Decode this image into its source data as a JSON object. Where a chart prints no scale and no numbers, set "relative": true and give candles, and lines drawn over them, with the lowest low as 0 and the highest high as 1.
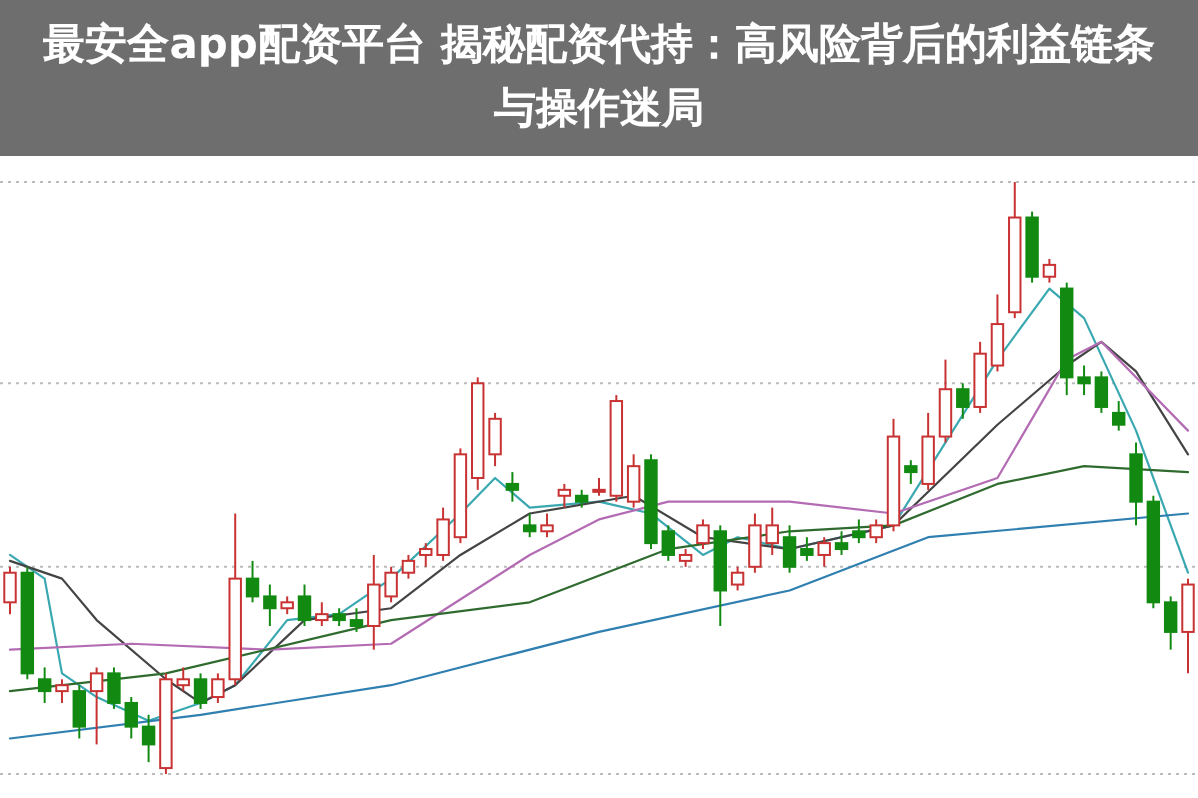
{
  "chart_data": {
    "type": "candlestick",
    "title": "最安全app配资平台 揭秘配资代持：高风险背后的利益链条与操作迷局",
    "relative": true,
    "ref_lines": [
      {
        "axis": "y",
        "value": 1,
        "color": "#bbbbbb",
        "line_style": "dotted"
      },
      {
        "axis": "y",
        "value": 0.66,
        "color": "#bbbbbb",
        "line_style": "dotted"
      },
      {
        "axis": "y",
        "value": 0.35,
        "color": "#bbbbbb",
        "line_style": "dotted"
      },
      {
        "axis": "y",
        "value": 0,
        "color": "#bbbbbb",
        "line_style": "dotted"
      }
    ],
    "categories": [
      null,
      null,
      null,
      null,
      null,
      null,
      null,
      null,
      null,
      null,
      null,
      null,
      null,
      null,
      null,
      null,
      null,
      null,
      null,
      null,
      null,
      null,
      null,
      null,
      null,
      null,
      null,
      null,
      null,
      null,
      null,
      null,
      null,
      null,
      null,
      null,
      null,
      null,
      null,
      null,
      null,
      null,
      null,
      null,
      null,
      null,
      null,
      null,
      null,
      null,
      null,
      null,
      null,
      null,
      null,
      null,
      null,
      null,
      null,
      null,
      null,
      null,
      null,
      null,
      null,
      null,
      null,
      null,
      null
    ],
    "ohlc": [
      [
        0.29,
        0.35,
        0.27,
        0.34
      ],
      [
        0.34,
        0.35,
        0.16,
        0.17
      ],
      [
        0.16,
        0.18,
        0.12,
        0.14
      ],
      [
        0.14,
        0.16,
        0.12,
        0.15
      ],
      [
        0.14,
        0.15,
        0.06,
        0.08
      ],
      [
        0.14,
        0.18,
        0.05,
        0.17
      ],
      [
        0.17,
        0.18,
        0.11,
        0.12
      ],
      [
        0.12,
        0.13,
        0.06,
        0.08
      ],
      [
        0.08,
        0.1,
        0.02,
        0.05
      ],
      [
        0.01,
        0.17,
        0,
        0.16
      ],
      [
        0.15,
        0.18,
        0.14,
        0.16
      ],
      [
        0.16,
        0.17,
        0.11,
        0.12
      ],
      [
        0.13,
        0.17,
        0.12,
        0.16
      ],
      [
        0.16,
        0.44,
        0.15,
        0.33
      ],
      [
        0.33,
        0.36,
        0.29,
        0.3
      ],
      [
        0.3,
        0.32,
        0.25,
        0.28
      ],
      [
        0.28,
        0.3,
        0.27,
        0.29
      ],
      [
        0.3,
        0.32,
        0.25,
        0.26
      ],
      [
        0.26,
        0.29,
        0.25,
        0.27
      ],
      [
        0.27,
        0.28,
        0.25,
        0.26
      ],
      [
        0.26,
        0.28,
        0.24,
        0.25
      ],
      [
        0.25,
        0.37,
        0.21,
        0.32
      ],
      [
        0.3,
        0.35,
        0.29,
        0.34
      ],
      [
        0.34,
        0.37,
        0.33,
        0.36
      ],
      [
        0.37,
        0.39,
        0.35,
        0.38
      ],
      [
        0.37,
        0.45,
        0.36,
        0.43
      ],
      [
        0.4,
        0.55,
        0.39,
        0.54
      ],
      [
        0.5,
        0.67,
        0.48,
        0.66
      ],
      [
        0.54,
        0.61,
        0.52,
        0.6
      ],
      [
        0.49,
        0.51,
        0.46,
        0.48
      ],
      [
        0.42,
        0.44,
        0.4,
        0.41
      ],
      [
        0.41,
        0.44,
        0.4,
        0.42
      ],
      [
        0.47,
        0.49,
        0.45,
        0.48
      ],
      [
        0.47,
        0.48,
        0.45,
        0.46
      ],
      [
        0.48,
        0.5,
        0.47,
        0.48
      ],
      [
        0.47,
        0.64,
        0.46,
        0.63
      ],
      [
        0.46,
        0.54,
        0.45,
        0.52
      ],
      [
        0.53,
        0.54,
        0.38,
        0.39
      ],
      [
        0.41,
        0.42,
        0.36,
        0.37
      ],
      [
        0.36,
        0.38,
        0.35,
        0.37
      ],
      [
        0.39,
        0.43,
        0.38,
        0.42
      ],
      [
        0.41,
        0.42,
        0.25,
        0.31
      ],
      [
        0.32,
        0.35,
        0.31,
        0.34
      ],
      [
        0.35,
        0.44,
        0.34,
        0.42
      ],
      [
        0.39,
        0.45,
        0.37,
        0.42
      ],
      [
        0.4,
        0.42,
        0.34,
        0.35
      ],
      [
        0.38,
        0.4,
        0.36,
        0.37
      ],
      [
        0.37,
        0.4,
        0.35,
        0.39
      ],
      [
        0.39,
        0.41,
        0.37,
        0.38
      ],
      [
        0.41,
        0.43,
        0.39,
        0.4
      ],
      [
        0.4,
        0.43,
        0.39,
        0.42
      ],
      [
        0.42,
        0.6,
        0.41,
        0.57
      ],
      [
        0.52,
        0.53,
        0.49,
        0.51
      ],
      [
        0.49,
        0.61,
        0.48,
        0.57
      ],
      [
        0.57,
        0.7,
        0.56,
        0.65
      ],
      [
        0.65,
        0.66,
        0.6,
        0.62
      ],
      [
        0.62,
        0.73,
        0.61,
        0.71
      ],
      [
        0.69,
        0.81,
        0.68,
        0.76
      ],
      [
        0.78,
        1,
        0.77,
        0.94
      ],
      [
        0.94,
        0.95,
        0.83,
        0.84
      ],
      [
        0.84,
        0.87,
        0.83,
        0.86
      ],
      [
        0.82,
        0.83,
        0.64,
        0.67
      ],
      [
        0.67,
        0.69,
        0.64,
        0.66
      ],
      [
        0.67,
        0.68,
        0.61,
        0.62
      ],
      [
        0.61,
        0.63,
        0.58,
        0.59
      ],
      [
        0.54,
        0.56,
        0.42,
        0.46
      ],
      [
        0.46,
        0.47,
        0.28,
        0.29
      ],
      [
        0.29,
        0.3,
        0.21,
        0.24
      ],
      [
        0.24,
        0.33,
        0.17,
        0.32
      ]
    ],
    "series": [
      {
        "type": "line",
        "color": "#3aa8b0",
        "values": [
          0.37,
          null,
          0.33,
          0.17,
          null,
          0.13,
          null,
          null,
          0.09,
          null,
          null,
          0.12,
          null,
          0.15,
          null,
          null,
          0.26,
          null,
          null,
          0.27,
          null,
          null,
          0.33,
          null,
          null,
          null,
          0.44,
          null,
          0.5,
          null,
          0.45,
          null,
          null,
          null,
          0.46,
          null,
          null,
          0.44,
          null,
          null,
          0.37,
          null,
          0.4,
          null,
          null,
          0.38,
          null,
          null,
          null,
          null,
          null,
          0.42,
          null,
          null,
          null,
          null,
          null,
          0.7,
          null,
          null,
          0.82,
          null,
          0.77,
          null,
          null,
          0.58,
          null,
          null,
          0.34
        ]
      },
      {
        "type": "line",
        "color": "#444444",
        "values": [
          0.36,
          null,
          null,
          0.33,
          null,
          0.26,
          null,
          null,
          null,
          0.16,
          null,
          0.12,
          null,
          0.15,
          null,
          null,
          null,
          0.26,
          null,
          null,
          null,
          null,
          0.28,
          null,
          null,
          null,
          0.37,
          null,
          null,
          null,
          0.44,
          null,
          null,
          null,
          null,
          null,
          0.47,
          null,
          null,
          null,
          0.4,
          null,
          null,
          null,
          null,
          0.38,
          null,
          null,
          null,
          null,
          null,
          0.42,
          null,
          null,
          null,
          null,
          null,
          0.59,
          null,
          null,
          null,
          0.69,
          null,
          0.73,
          null,
          0.68,
          null,
          null,
          0.54
        ]
      },
      {
        "type": "line",
        "color": "#b36bb3",
        "values": [
          0.21,
          null,
          null,
          null,
          null,
          null,
          null,
          0.22,
          null,
          null,
          null,
          null,
          null,
          null,
          null,
          0.21,
          null,
          null,
          null,
          null,
          null,
          null,
          0.22,
          null,
          null,
          null,
          null,
          null,
          null,
          null,
          0.37,
          null,
          null,
          null,
          0.43,
          null,
          null,
          null,
          0.46,
          null,
          null,
          null,
          null,
          null,
          null,
          0.46,
          null,
          null,
          null,
          null,
          null,
          0.44,
          null,
          null,
          null,
          null,
          null,
          0.5,
          null,
          null,
          null,
          0.7,
          null,
          0.73,
          null,
          null,
          null,
          null,
          0.58
        ]
      },
      {
        "type": "line",
        "color": "#2f6b2f",
        "values": [
          0.14,
          null,
          null,
          null,
          null,
          null,
          null,
          null,
          null,
          0.17,
          null,
          null,
          null,
          null,
          null,
          null,
          null,
          null,
          null,
          null,
          null,
          null,
          0.26,
          null,
          null,
          null,
          null,
          null,
          null,
          null,
          0.29,
          null,
          null,
          null,
          null,
          null,
          null,
          null,
          0.38,
          null,
          null,
          null,
          null,
          null,
          null,
          0.41,
          null,
          null,
          null,
          null,
          null,
          0.42,
          null,
          null,
          null,
          null,
          null,
          0.49,
          null,
          null,
          null,
          null,
          0.52,
          null,
          null,
          null,
          null,
          null,
          0.51
        ]
      },
      {
        "type": "line",
        "color": "#2f7fb0",
        "values": [
          0.06,
          null,
          null,
          null,
          null,
          null,
          null,
          null,
          null,
          null,
          null,
          0.1,
          null,
          null,
          null,
          null,
          null,
          null,
          null,
          null,
          null,
          null,
          0.15,
          null,
          null,
          null,
          null,
          null,
          null,
          null,
          null,
          null,
          null,
          null,
          0.24,
          null,
          null,
          null,
          null,
          null,
          null,
          null,
          null,
          null,
          null,
          0.31,
          null,
          null,
          null,
          null,
          null,
          null,
          null,
          0.4,
          null,
          null,
          null,
          null,
          null,
          null,
          null,
          null,
          null,
          null,
          null,
          null,
          null,
          null,
          0.44
        ]
      }
    ]
  }
}
